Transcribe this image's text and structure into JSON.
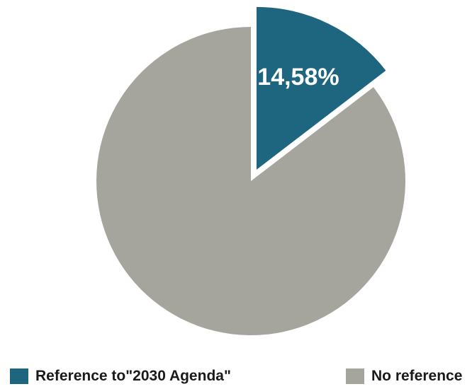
{
  "chart_data": {
    "type": "pie",
    "slices": [
      {
        "label": "Reference to\"2030 Agenda\"",
        "value": 14.58,
        "display": "14,58%",
        "color": "#1e6580",
        "exploded": true
      },
      {
        "label": "No reference",
        "value": 85.42,
        "display": "",
        "color": "#a6a59d",
        "exploded": false
      }
    ],
    "start_angle": "12 o'clock, clockwise",
    "legend": {
      "position": "bottom",
      "items": [
        {
          "label": "Reference to\"2030 Agenda\"",
          "color": "#1e6580"
        },
        {
          "label": "No reference",
          "color": "#a6a59d"
        }
      ]
    }
  }
}
